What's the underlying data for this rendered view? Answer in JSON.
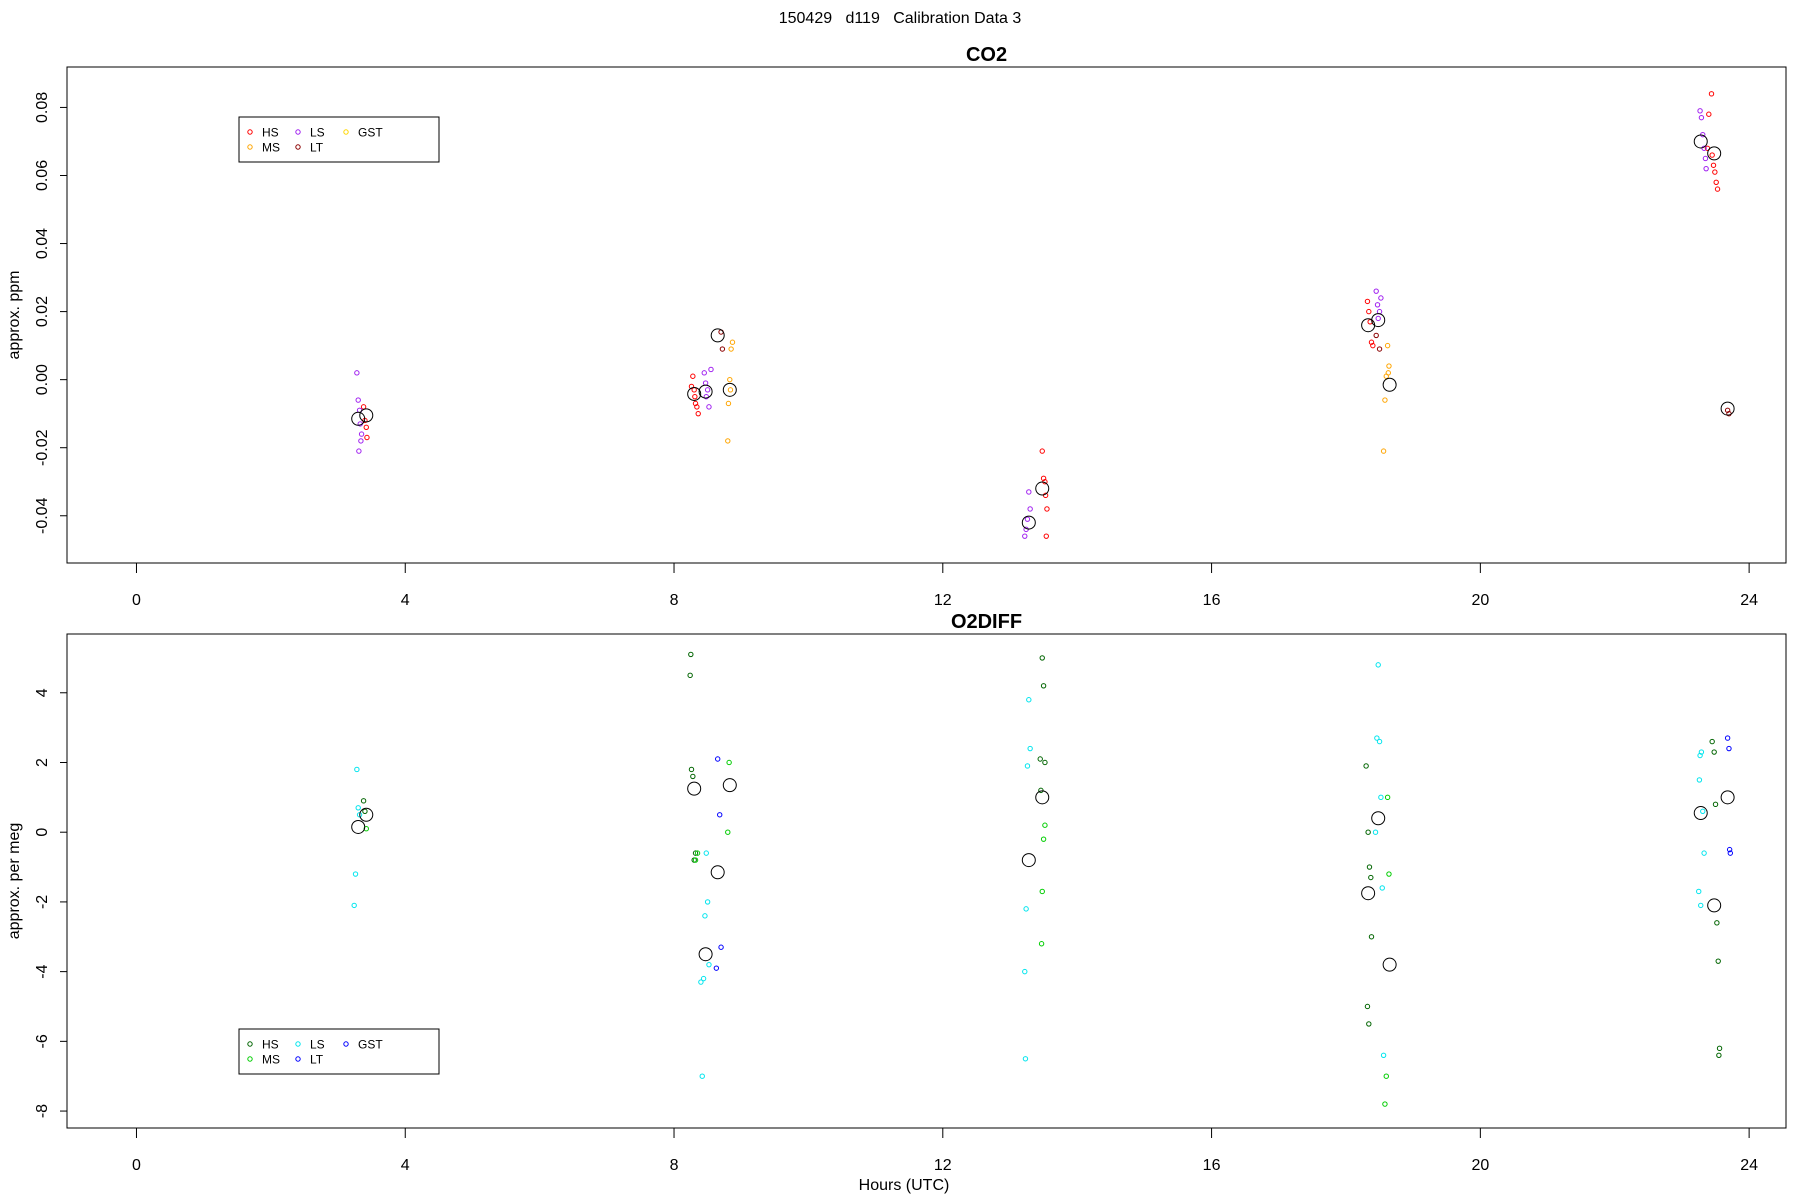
{
  "figure": {
    "title": "150429   d119   Calibration Data 3"
  },
  "chart_data": [
    {
      "type": "scatter",
      "title": "CO2",
      "xlabel": "",
      "ylabel": "approx. ppm",
      "xlim": [
        -0.9,
        24.4
      ],
      "ylim": [
        -0.053,
        0.091
      ],
      "xticks": [
        0,
        4,
        8,
        12,
        16,
        20,
        24
      ],
      "yticks": [
        -0.04,
        -0.02,
        0.0,
        0.02,
        0.04,
        0.06,
        0.08
      ],
      "ytick_labels": [
        "-0.04",
        "-0.02",
        "0.00",
        "0.02",
        "0.04",
        "0.06",
        "0.08"
      ],
      "legend": {
        "position": "top-left",
        "entries": [
          "HS",
          "MS",
          "LS",
          "LT",
          "GST"
        ]
      },
      "series": [
        {
          "name": "HS",
          "color": "#ff0000",
          "points": [
            [
              3.38,
              -0.008
            ],
            [
              3.4,
              -0.012
            ],
            [
              3.42,
              -0.014
            ],
            [
              3.43,
              -0.017
            ],
            [
              8.28,
              0.001
            ],
            [
              8.3,
              -0.003
            ],
            [
              8.31,
              -0.005
            ],
            [
              8.32,
              -0.007
            ],
            [
              8.34,
              -0.008
            ],
            [
              8.36,
              -0.01
            ],
            [
              8.26,
              -0.002
            ],
            [
              13.48,
              -0.021
            ],
            [
              13.5,
              -0.029
            ],
            [
              13.52,
              -0.03
            ],
            [
              13.53,
              -0.034
            ],
            [
              13.55,
              -0.038
            ],
            [
              13.54,
              -0.046
            ],
            [
              18.32,
              0.023
            ],
            [
              18.34,
              0.02
            ],
            [
              18.36,
              0.017
            ],
            [
              18.38,
              0.011
            ],
            [
              18.4,
              0.01
            ],
            [
              23.4,
              0.078
            ],
            [
              23.45,
              0.066
            ],
            [
              23.47,
              0.063
            ],
            [
              23.49,
              0.061
            ],
            [
              23.51,
              0.058
            ],
            [
              23.53,
              0.056
            ],
            [
              23.44,
              0.084
            ],
            [
              23.38,
              0.068
            ]
          ]
        },
        {
          "name": "MS",
          "color": "#ffa500",
          "points": [
            [
              8.85,
              0.009
            ],
            [
              8.87,
              0.011
            ],
            [
              8.83,
              0.0
            ],
            [
              8.81,
              -0.007
            ],
            [
              8.8,
              -0.018
            ],
            [
              8.84,
              -0.003
            ],
            [
              18.62,
              0.01
            ],
            [
              18.64,
              0.004
            ],
            [
              18.6,
              0.001
            ],
            [
              18.58,
              -0.006
            ],
            [
              18.56,
              -0.021
            ],
            [
              18.63,
              0.002
            ]
          ]
        },
        {
          "name": "LS",
          "color": "#a020f0",
          "points": [
            [
              3.28,
              0.002
            ],
            [
              3.3,
              -0.006
            ],
            [
              3.32,
              -0.009
            ],
            [
              3.33,
              -0.013
            ],
            [
              3.35,
              -0.016
            ],
            [
              3.34,
              -0.018
            ],
            [
              3.31,
              -0.021
            ],
            [
              8.45,
              0.002
            ],
            [
              8.47,
              -0.001
            ],
            [
              8.5,
              -0.003
            ],
            [
              8.48,
              -0.005
            ],
            [
              8.52,
              -0.008
            ],
            [
              8.55,
              0.003
            ],
            [
              13.28,
              -0.033
            ],
            [
              13.3,
              -0.038
            ],
            [
              13.26,
              -0.041
            ],
            [
              13.24,
              -0.044
            ],
            [
              13.22,
              -0.046
            ],
            [
              18.45,
              0.026
            ],
            [
              18.47,
              0.022
            ],
            [
              18.5,
              0.02
            ],
            [
              18.52,
              0.024
            ],
            [
              18.48,
              0.018
            ],
            [
              23.27,
              0.079
            ],
            [
              23.29,
              0.077
            ],
            [
              23.31,
              0.072
            ],
            [
              23.33,
              0.068
            ],
            [
              23.35,
              0.065
            ],
            [
              23.36,
              0.062
            ]
          ]
        },
        {
          "name": "LT",
          "color": "#8b0000",
          "points": [
            [
              8.7,
              0.014
            ],
            [
              8.72,
              0.009
            ],
            [
              18.45,
              0.013
            ],
            [
              18.5,
              0.009
            ],
            [
              23.68,
              -0.009
            ],
            [
              23.7,
              -0.01
            ]
          ]
        },
        {
          "name": "GST",
          "color": "#ffd700",
          "points": []
        }
      ],
      "means": [
        [
          3.3,
          -0.0115
        ],
        [
          3.42,
          -0.0105
        ],
        [
          8.3,
          -0.0042
        ],
        [
          8.47,
          -0.0035
        ],
        [
          8.65,
          0.013
        ],
        [
          8.83,
          -0.003
        ],
        [
          13.28,
          -0.042
        ],
        [
          13.48,
          -0.032
        ],
        [
          18.33,
          0.016
        ],
        [
          18.48,
          0.0175
        ],
        [
          18.65,
          -0.0015
        ],
        [
          23.28,
          0.07
        ],
        [
          23.48,
          0.0665
        ],
        [
          23.68,
          -0.0085
        ]
      ]
    },
    {
      "type": "scatter",
      "title": "O2DIFF",
      "xlabel": "Hours (UTC)",
      "ylabel": "approx. per meg",
      "xlim": [
        -0.9,
        24.4
      ],
      "ylim": [
        -8.4,
        5.6
      ],
      "xticks": [
        0,
        4,
        8,
        12,
        16,
        20,
        24
      ],
      "yticks": [
        -8,
        -6,
        -4,
        -2,
        0,
        2,
        4
      ],
      "ytick_labels": [
        "-8",
        "-6",
        "-4",
        "-2",
        "0",
        "2",
        "4"
      ],
      "legend": {
        "position": "bottom-left",
        "entries": [
          "HS",
          "MS",
          "LS",
          "LT",
          "GST"
        ]
      },
      "series": [
        {
          "name": "HS",
          "color": "#006400",
          "points": [
            [
              3.38,
              0.9
            ],
            [
              3.4,
              0.6
            ],
            [
              8.25,
              5.1
            ],
            [
              8.24,
              4.5
            ],
            [
              8.26,
              1.8
            ],
            [
              8.28,
              1.6
            ],
            [
              8.3,
              -0.8
            ],
            [
              8.32,
              -0.6
            ],
            [
              13.48,
              5.0
            ],
            [
              13.5,
              4.2
            ],
            [
              13.45,
              2.1
            ],
            [
              13.52,
              2.0
            ],
            [
              13.46,
              1.2
            ],
            [
              18.3,
              1.9
            ],
            [
              18.33,
              0.0
            ],
            [
              18.35,
              -1.0
            ],
            [
              18.37,
              -1.3
            ],
            [
              18.38,
              -3.0
            ],
            [
              18.32,
              -5.0
            ],
            [
              18.34,
              -5.5
            ],
            [
              23.45,
              2.6
            ],
            [
              23.48,
              2.3
            ],
            [
              23.5,
              0.8
            ],
            [
              23.52,
              -2.6
            ],
            [
              23.54,
              -3.7
            ],
            [
              23.56,
              -6.2
            ],
            [
              23.55,
              -6.4
            ]
          ]
        },
        {
          "name": "MS",
          "color": "#00cd00",
          "points": [
            [
              3.42,
              0.1
            ],
            [
              8.82,
              2.0
            ],
            [
              8.8,
              0.0
            ],
            [
              8.32,
              -0.8
            ],
            [
              8.35,
              -0.6
            ],
            [
              13.52,
              0.2
            ],
            [
              13.5,
              -0.2
            ],
            [
              13.48,
              -1.7
            ],
            [
              13.47,
              -3.2
            ],
            [
              18.62,
              1.0
            ],
            [
              18.64,
              -1.2
            ],
            [
              18.6,
              -7.0
            ],
            [
              18.58,
              -7.8
            ]
          ]
        },
        {
          "name": "LS",
          "color": "#00e5ee",
          "points": [
            [
              3.28,
              1.8
            ],
            [
              3.3,
              0.7
            ],
            [
              3.32,
              0.5
            ],
            [
              3.26,
              -1.2
            ],
            [
              3.24,
              -2.1
            ],
            [
              8.48,
              -0.6
            ],
            [
              8.5,
              -2.0
            ],
            [
              8.46,
              -2.4
            ],
            [
              8.52,
              -3.8
            ],
            [
              8.44,
              -4.2
            ],
            [
              8.4,
              -4.3
            ],
            [
              8.42,
              -7.0
            ],
            [
              13.28,
              3.8
            ],
            [
              13.3,
              2.4
            ],
            [
              13.26,
              1.9
            ],
            [
              13.24,
              -2.2
            ],
            [
              13.22,
              -4.0
            ],
            [
              13.23,
              -6.5
            ],
            [
              18.48,
              4.8
            ],
            [
              18.46,
              2.7
            ],
            [
              18.5,
              2.6
            ],
            [
              18.52,
              1.0
            ],
            [
              18.54,
              -1.6
            ],
            [
              18.44,
              0.0
            ],
            [
              18.56,
              -6.4
            ],
            [
              23.27,
              2.2
            ],
            [
              23.29,
              2.3
            ],
            [
              23.31,
              0.6
            ],
            [
              23.33,
              -0.6
            ],
            [
              23.25,
              -1.7
            ],
            [
              23.28,
              -2.1
            ],
            [
              23.26,
              1.5
            ]
          ]
        },
        {
          "name": "LT",
          "color": "#0000ff",
          "points": [
            [
              8.65,
              2.1
            ],
            [
              8.68,
              0.5
            ],
            [
              8.7,
              -3.3
            ],
            [
              8.63,
              -3.9
            ],
            [
              23.68,
              2.7
            ],
            [
              23.7,
              2.4
            ],
            [
              23.72,
              -0.6
            ],
            [
              23.71,
              -0.5
            ]
          ]
        },
        {
          "name": "GST",
          "color": "#0000ff",
          "points": []
        }
      ],
      "means": [
        [
          3.3,
          0.15
        ],
        [
          3.42,
          0.5
        ],
        [
          8.3,
          1.25
        ],
        [
          8.47,
          -3.5
        ],
        [
          8.65,
          -1.15
        ],
        [
          8.83,
          1.35
        ],
        [
          13.28,
          -0.8
        ],
        [
          13.48,
          1.0
        ],
        [
          18.33,
          -1.75
        ],
        [
          18.48,
          0.4
        ],
        [
          18.65,
          -3.8
        ],
        [
          23.28,
          0.55
        ],
        [
          23.48,
          -2.1
        ],
        [
          23.68,
          1.0
        ]
      ]
    }
  ]
}
